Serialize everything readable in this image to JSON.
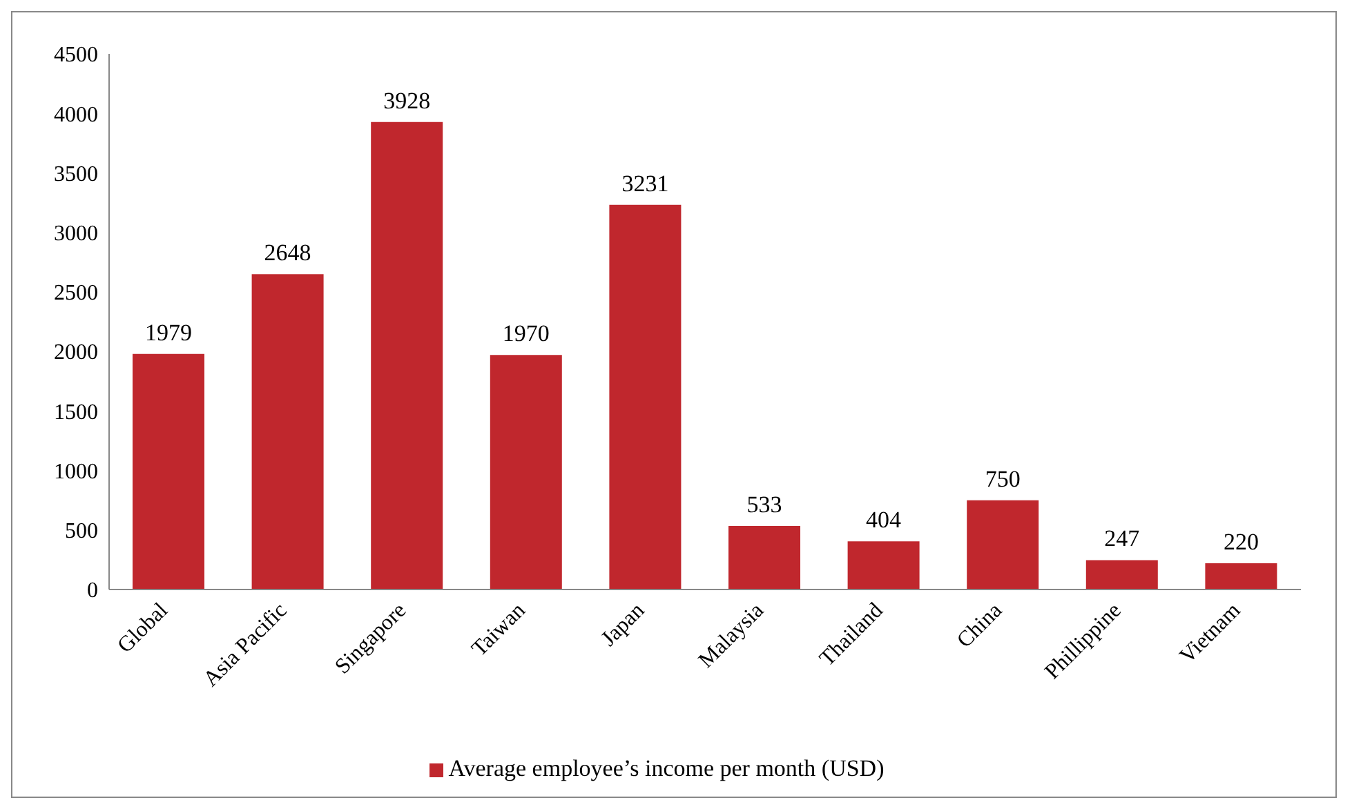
{
  "chart_data": {
    "type": "bar",
    "categories": [
      "Global",
      "Asia Pacific",
      "Singapore",
      "Taiwan",
      "Japan",
      "Malaysia",
      "Thailand",
      "China",
      "Phillippine",
      "Vietnam"
    ],
    "series": [
      {
        "name": "Average employee’s income per month (USD)",
        "color": "#c0272d",
        "values": [
          1979,
          2648,
          3928,
          1970,
          3231,
          533,
          404,
          750,
          247,
          220
        ]
      }
    ],
    "ylim": [
      0,
      4500
    ],
    "yticks": [
      0,
      500,
      1000,
      1500,
      2000,
      2500,
      3000,
      3500,
      4000,
      4500
    ],
    "data_labels": true,
    "grid": false,
    "legend": "bottom"
  }
}
